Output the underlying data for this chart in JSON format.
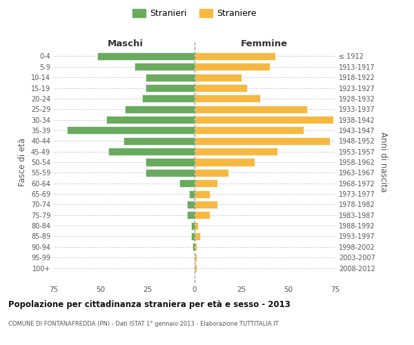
{
  "age_groups": [
    "0-4",
    "5-9",
    "10-14",
    "15-19",
    "20-24",
    "25-29",
    "30-34",
    "35-39",
    "40-44",
    "45-49",
    "50-54",
    "55-59",
    "60-64",
    "65-69",
    "70-74",
    "75-79",
    "80-84",
    "85-89",
    "90-94",
    "95-99",
    "100+"
  ],
  "birth_years": [
    "2008-2012",
    "2003-2007",
    "1998-2002",
    "1993-1997",
    "1988-1992",
    "1983-1987",
    "1978-1982",
    "1973-1977",
    "1968-1972",
    "1963-1967",
    "1958-1962",
    "1953-1957",
    "1948-1952",
    "1943-1947",
    "1938-1942",
    "1933-1937",
    "1928-1932",
    "1923-1927",
    "1918-1922",
    "1913-1917",
    "≤ 1912"
  ],
  "maschi": [
    52,
    32,
    26,
    26,
    28,
    37,
    47,
    68,
    38,
    46,
    26,
    26,
    8,
    3,
    4,
    4,
    2,
    2,
    1,
    0,
    0
  ],
  "femmine": [
    43,
    40,
    25,
    28,
    35,
    60,
    74,
    58,
    72,
    44,
    32,
    18,
    12,
    8,
    12,
    8,
    2,
    3,
    1,
    1,
    1
  ],
  "maschi_color": "#6aaa5e",
  "femmine_color": "#f5b942",
  "background_color": "#ffffff",
  "grid_color": "#cccccc",
  "title": "Popolazione per cittadinanza straniera per età e sesso - 2013",
  "subtitle": "COMUNE DI FONTANAFREDDA (PN) - Dati ISTAT 1° gennaio 2013 - Elaborazione TUTTITALIA.IT",
  "ylabel_left": "Fasce di età",
  "ylabel_right": "Anni di nascita",
  "legend_maschi": "Stranieri",
  "legend_femmine": "Straniere",
  "xlim": 75
}
